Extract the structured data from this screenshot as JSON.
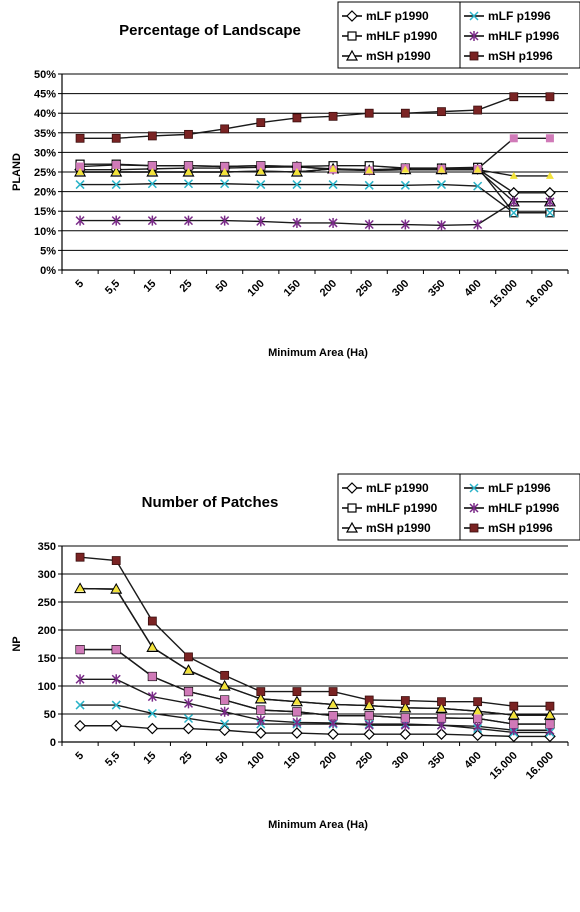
{
  "chart_data": [
    {
      "type": "line",
      "title": "Percentage of Landscape",
      "xlabel": "Minimum Area (Ha)",
      "ylabel": "PLAND",
      "ylim": [
        0,
        50
      ],
      "yticks": [
        "0%",
        "5%",
        "10%",
        "15%",
        "20%",
        "25%",
        "30%",
        "35%",
        "40%",
        "45%",
        "50%"
      ],
      "categories": [
        "5",
        "5,5",
        "15",
        "25",
        "50",
        "100",
        "150",
        "200",
        "250",
        "300",
        "350",
        "400",
        "15.000",
        "16.000"
      ],
      "grid": "horizontal",
      "series": [
        {
          "name": "mLF p1990",
          "values": [
            25.6,
            25.6,
            25.8,
            26.0,
            26.0,
            26.2,
            26.3,
            25.8,
            25.6,
            25.8,
            25.8,
            25.8,
            19.7,
            19.7
          ],
          "color": "#1a1a1a",
          "marker": "diamond-open"
        },
        {
          "name": "mHLF p1990",
          "values": [
            27.0,
            27.0,
            26.6,
            26.6,
            26.4,
            26.6,
            26.4,
            26.6,
            26.6,
            26.0,
            26.0,
            26.2,
            14.6,
            14.6
          ],
          "color": "#1a1a1a",
          "marker": "square-open"
        },
        {
          "name": "mSH p1990",
          "values": [
            25.0,
            25.0,
            25.0,
            25.0,
            25.0,
            25.2,
            25.0,
            25.8,
            25.4,
            25.6,
            25.6,
            25.6,
            17.4,
            17.4
          ],
          "color": "#1a1a1a",
          "marker": "triangle-open"
        },
        {
          "name": "mLF p1996",
          "values": [
            21.8,
            21.8,
            22.0,
            22.0,
            22.0,
            21.8,
            21.8,
            21.8,
            21.6,
            21.6,
            21.8,
            21.4,
            14.6,
            14.6
          ],
          "color": "#1a1a1a",
          "marker": "x-cyan"
        },
        {
          "name": "mHLF p1996",
          "values": [
            12.6,
            12.6,
            12.6,
            12.6,
            12.6,
            12.4,
            12.0,
            12.0,
            11.6,
            11.6,
            11.4,
            11.6,
            17.4,
            17.4
          ],
          "color": "#1a1a1a",
          "marker": "star-purple"
        },
        {
          "name": "mSH p1996",
          "values": [
            33.6,
            33.6,
            34.2,
            34.6,
            36.0,
            37.6,
            38.8,
            39.2,
            40.0,
            40.0,
            40.4,
            40.8,
            44.2,
            44.2
          ],
          "color": "#1a1a1a",
          "marker": "square-maroon"
        },
        {
          "name": "",
          "values": [
            26.4,
            26.8,
            26.6,
            26.6,
            26.4,
            26.6,
            26.4,
            25.6,
            25.4,
            26.0,
            25.8,
            25.8,
            33.6,
            33.6
          ],
          "color": "#1a1a1a",
          "marker": "square-pink"
        },
        {
          "name": "",
          "values": [
            25.0,
            25.0,
            25.0,
            25.0,
            25.0,
            25.2,
            25.0,
            25.8,
            25.4,
            25.6,
            25.6,
            25.6,
            24.0,
            24.0
          ],
          "color": "#1a1a1a",
          "marker": "square-yellow"
        }
      ],
      "legend": {
        "placement": "top-right",
        "boxes": [
          [
            "mLF p1990",
            "mHLF p1990",
            "mSH p1990"
          ],
          [
            "mLF p1996",
            "mHLF p1996",
            "mSH p1996"
          ]
        ]
      }
    },
    {
      "type": "line",
      "title": "Number of Patches",
      "xlabel": "Minimum Area (Ha)",
      "ylabel": "NP",
      "ylim": [
        0,
        350
      ],
      "yticks": [
        "0",
        "50",
        "100",
        "150",
        "200",
        "250",
        "300",
        "350"
      ],
      "categories": [
        "5",
        "5,5",
        "15",
        "25",
        "50",
        "100",
        "150",
        "200",
        "250",
        "300",
        "350",
        "400",
        "15.000",
        "16.000"
      ],
      "grid": "horizontal",
      "series": [
        {
          "name": "mLF p1990",
          "values": [
            29,
            29,
            24,
            24,
            21,
            16,
            16,
            14,
            14,
            14,
            14,
            12,
            10,
            10
          ],
          "color": "#1a1a1a",
          "marker": "diamond-open"
        },
        {
          "name": "mHLF p1990",
          "values": [
            165,
            165,
            117,
            90,
            75,
            57,
            54,
            47,
            47,
            43,
            43,
            42,
            32,
            32
          ],
          "color": "#1a1a1a",
          "marker": "square-open"
        },
        {
          "name": "mSH p1990",
          "values": [
            274,
            273,
            169,
            128,
            100,
            77,
            72,
            67,
            65,
            61,
            60,
            55,
            48,
            48
          ],
          "color": "#1a1a1a",
          "marker": "triangle-open"
        },
        {
          "name": "mLF p1996",
          "values": [
            66,
            66,
            51,
            42,
            32,
            32,
            32,
            32,
            32,
            32,
            30,
            24,
            17,
            17
          ],
          "color": "#1a1a1a",
          "marker": "x-cyan"
        },
        {
          "name": "mHLF p1996",
          "values": [
            112,
            112,
            81,
            69,
            54,
            39,
            35,
            34,
            30,
            30,
            30,
            28,
            21,
            21
          ],
          "color": "#1a1a1a",
          "marker": "star-purple"
        },
        {
          "name": "mSH p1996",
          "values": [
            330,
            324,
            216,
            152,
            119,
            90,
            90,
            90,
            75,
            74,
            72,
            72,
            64,
            64
          ],
          "color": "#1a1a1a",
          "marker": "square-maroon"
        },
        {
          "name": "",
          "values": [
            165,
            165,
            117,
            90,
            75,
            57,
            54,
            47,
            47,
            43,
            43,
            42,
            32,
            32
          ],
          "color": "#1a1a1a",
          "marker": "square-pink"
        },
        {
          "name": "",
          "values": [
            274,
            273,
            169,
            128,
            100,
            77,
            72,
            67,
            65,
            61,
            60,
            55,
            48,
            48
          ],
          "color": "#1a1a1a",
          "marker": "square-yellow"
        }
      ],
      "legend": {
        "placement": "top-right",
        "boxes": [
          [
            "mLF p1990",
            "mHLF p1990",
            "mSH p1990"
          ],
          [
            "mLF p1996",
            "mHLF p1996",
            "mSH p1996"
          ]
        ]
      }
    }
  ],
  "colors": {
    "line": "#1a1a1a",
    "grid": "#000000",
    "cyan": "#2ab3c8",
    "purple": "#7a2a88",
    "maroon": "#7a2323",
    "pink": "#d07ab8",
    "yellow": "#f2e23a"
  }
}
